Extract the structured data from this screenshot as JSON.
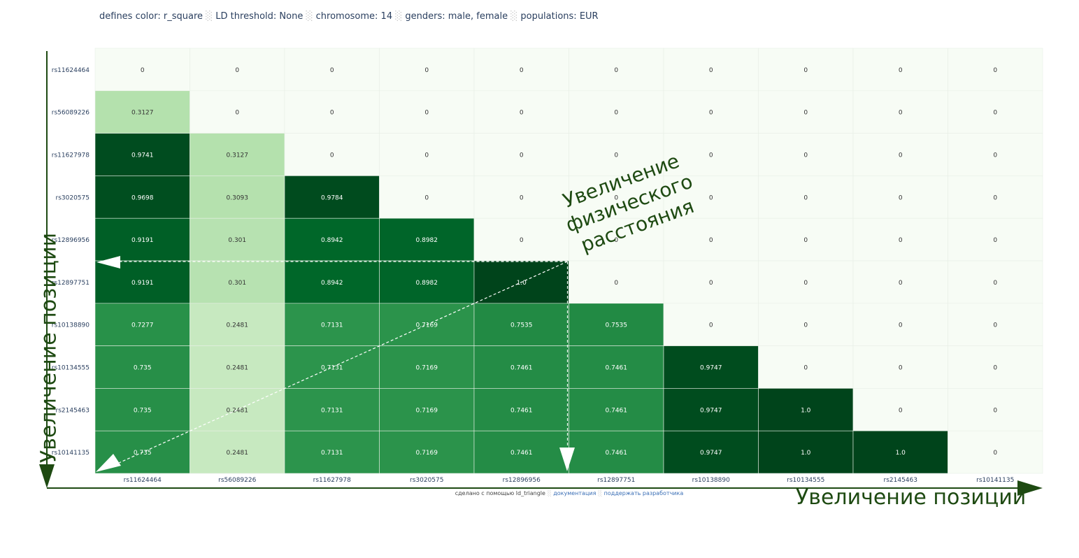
{
  "subtitle": {
    "parts": [
      "defines color: r_square",
      "LD threshold: None",
      "chromosome: 14",
      "genders: male, female",
      "populations: EUR"
    ],
    "separator": "░"
  },
  "chart_data": {
    "type": "heatmap",
    "colorscale": "Greens",
    "color_by": "r_square",
    "x": [
      "rs11624464",
      "rs56089226",
      "rs11627978",
      "rs3020575",
      "rs12896956",
      "rs12897751",
      "rs10138890",
      "rs10134555",
      "rs2145463",
      "rs10141135"
    ],
    "y": [
      "rs11624464",
      "rs56089226",
      "rs11627978",
      "rs3020575",
      "rs12896956",
      "rs12897751",
      "rs10138890",
      "rs10134555",
      "rs2145463",
      "rs10141135"
    ],
    "z": [
      [
        "0",
        "0",
        "0",
        "0",
        "0",
        "0",
        "0",
        "0",
        "0",
        "0"
      ],
      [
        "0.3127",
        "0",
        "0",
        "0",
        "0",
        "0",
        "0",
        "0",
        "0",
        "0"
      ],
      [
        "0.9741",
        "0.3127",
        "0",
        "0",
        "0",
        "0",
        "0",
        "0",
        "0",
        "0"
      ],
      [
        "0.9698",
        "0.3093",
        "0.9784",
        "0",
        "0",
        "0",
        "0",
        "0",
        "0",
        "0"
      ],
      [
        "0.9191",
        "0.301",
        "0.8942",
        "0.8982",
        "0",
        "0",
        "0",
        "0",
        "0",
        "0"
      ],
      [
        "0.9191",
        "0.301",
        "0.8942",
        "0.8982",
        "1.0",
        "0",
        "0",
        "0",
        "0",
        "0"
      ],
      [
        "0.7277",
        "0.2481",
        "0.7131",
        "0.7169",
        "0.7535",
        "0.7535",
        "0",
        "0",
        "0",
        "0"
      ],
      [
        "0.735",
        "0.2481",
        "0.7131",
        "0.7169",
        "0.7461",
        "0.7461",
        "0.9747",
        "0",
        "0",
        "0"
      ],
      [
        "0.735",
        "0.2481",
        "0.7131",
        "0.7169",
        "0.7461",
        "0.7461",
        "0.9747",
        "1.0",
        "0",
        "0"
      ],
      [
        "0.735",
        "0.2481",
        "0.7131",
        "0.7169",
        "0.7461",
        "0.7461",
        "0.9747",
        "1.0",
        "1.0",
        "0"
      ]
    ]
  },
  "annotations": {
    "y_axis": "Увеличение позиции",
    "x_axis": "Увеличение позиции",
    "diagonal": [
      "Увеличение",
      "физического",
      "расстояния"
    ]
  },
  "footer": {
    "made_with": "сделано с помощью ld_triangle",
    "docs": "документация",
    "support": "поддержать разработчика",
    "separator": "░"
  },
  "colors": {
    "annotation": "#1e4a12",
    "axis_text": "#2a3f5f"
  }
}
